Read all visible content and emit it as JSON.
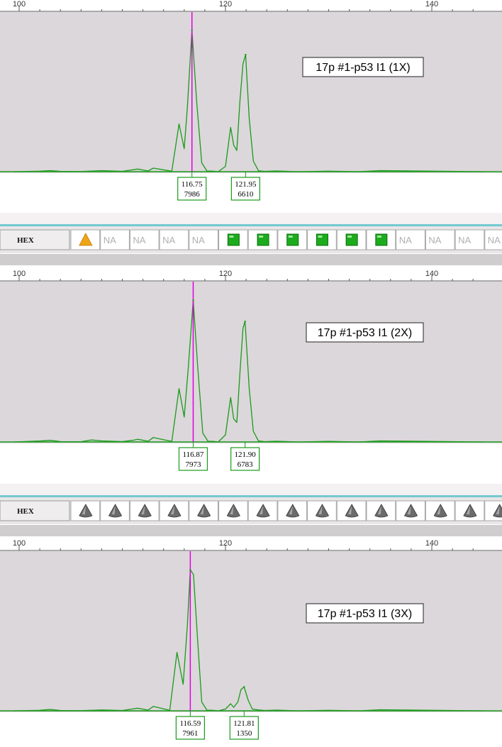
{
  "colors": {
    "plot_background": "#dcd7db",
    "trace": "#1a9a1a",
    "marker": "#e000e0",
    "peak_box": "#1a9a1a",
    "bin_bar_accent": "#74c8d2",
    "bin_pass": "#1cab1c",
    "bin_warn": "#f0a418",
    "bin_none": "#6b6b6b"
  },
  "bin_bars": [
    {
      "dye": "HEX",
      "bins": [
        {
          "status": "warn",
          "text": ""
        },
        {
          "status": "na",
          "text": "NA"
        },
        {
          "status": "na",
          "text": "NA"
        },
        {
          "status": "na",
          "text": "NA"
        },
        {
          "status": "na",
          "text": "NA"
        },
        {
          "status": "pass",
          "text": ""
        },
        {
          "status": "pass",
          "text": ""
        },
        {
          "status": "pass",
          "text": ""
        },
        {
          "status": "pass",
          "text": ""
        },
        {
          "status": "pass",
          "text": ""
        },
        {
          "status": "pass",
          "text": ""
        },
        {
          "status": "na",
          "text": "NA"
        },
        {
          "status": "na",
          "text": "NA"
        },
        {
          "status": "na",
          "text": "NA"
        },
        {
          "status": "na",
          "text": "NA"
        }
      ]
    },
    {
      "dye": "HEX",
      "bins": [
        {
          "status": "none",
          "text": ""
        },
        {
          "status": "none",
          "text": ""
        },
        {
          "status": "none",
          "text": ""
        },
        {
          "status": "none",
          "text": ""
        },
        {
          "status": "none",
          "text": ""
        },
        {
          "status": "none",
          "text": ""
        },
        {
          "status": "none",
          "text": ""
        },
        {
          "status": "none",
          "text": ""
        },
        {
          "status": "none",
          "text": ""
        },
        {
          "status": "none",
          "text": ""
        },
        {
          "status": "none",
          "text": ""
        },
        {
          "status": "none",
          "text": ""
        },
        {
          "status": "none",
          "text": ""
        },
        {
          "status": "none",
          "text": ""
        },
        {
          "status": "none",
          "text": ""
        }
      ]
    }
  ],
  "chart_data": [
    {
      "type": "line",
      "sample_label": "17p #1-p53 I1 (1X)",
      "xlim": [
        99.5,
        145
      ],
      "x_ticks": [
        100,
        120,
        140
      ],
      "ylim": [
        0,
        8700
      ],
      "series": [
        {
          "x": [
            99.5,
            102,
            103,
            104,
            106,
            108,
            110,
            111.5,
            112.5,
            113,
            114.8,
            115.5,
            116,
            116.3,
            116.75,
            117.2,
            117.7,
            118.2,
            118.8,
            119.3,
            120,
            120.5,
            120.8,
            121.1,
            121.4,
            121.7,
            121.95,
            122.3,
            122.7,
            123.2,
            123.8,
            125,
            127,
            130,
            133,
            135,
            145
          ],
          "y": [
            0,
            30,
            60,
            20,
            10,
            60,
            20,
            150,
            40,
            200,
            30,
            2700,
            1300,
            3600,
            7986,
            4000,
            500,
            40,
            30,
            0,
            300,
            2500,
            1500,
            1200,
            4000,
            6100,
            6610,
            3000,
            600,
            50,
            20,
            40,
            0,
            30,
            0,
            60,
            0
          ]
        }
      ],
      "peaks": [
        {
          "x": 116.75,
          "height": 7986,
          "label_size": "116.75",
          "label_height": "7986"
        },
        {
          "x": 121.95,
          "height": 6610,
          "label_size": "121.95",
          "label_height": "6610"
        }
      ],
      "marker_x": 116.75
    },
    {
      "type": "line",
      "sample_label": "17p #1-p53 I1 (2X)",
      "xlim": [
        99.5,
        145
      ],
      "x_ticks": [
        100,
        120,
        140
      ],
      "ylim": [
        0,
        8700
      ],
      "series": [
        {
          "x": [
            99.5,
            102,
            103,
            104,
            106,
            107,
            108,
            110,
            111,
            111.5,
            112.5,
            113,
            114.8,
            115.5,
            116,
            116.4,
            116.87,
            117.3,
            117.8,
            118.3,
            118.8,
            119.3,
            120,
            120.5,
            120.8,
            121.1,
            121.4,
            121.7,
            121.9,
            122.3,
            122.7,
            123.2,
            123.8,
            125,
            127,
            130,
            133,
            135,
            145
          ],
          "y": [
            0,
            50,
            90,
            20,
            10,
            110,
            60,
            20,
            90,
            150,
            40,
            250,
            30,
            3000,
            1400,
            4200,
            7973,
            4300,
            500,
            40,
            30,
            0,
            400,
            2500,
            1300,
            1100,
            3900,
            6400,
            6783,
            3000,
            600,
            50,
            20,
            40,
            0,
            30,
            0,
            60,
            0
          ]
        }
      ],
      "peaks": [
        {
          "x": 116.87,
          "height": 7973,
          "label_size": "116.87",
          "label_height": "7973"
        },
        {
          "x": 121.9,
          "height": 6783,
          "label_size": "121.90",
          "label_height": "6783"
        }
      ],
      "marker_x": 116.87
    },
    {
      "type": "line",
      "sample_label": "17p #1-p53 I1 (3X)",
      "xlim": [
        99.5,
        145
      ],
      "x_ticks": [
        100,
        120,
        140
      ],
      "ylim": [
        0,
        8700
      ],
      "series": [
        {
          "x": [
            99.5,
            102,
            103,
            104,
            106,
            108,
            110,
            111.5,
            112.5,
            113,
            114.6,
            115.3,
            115.9,
            116.3,
            116.59,
            116.9,
            117.3,
            117.7,
            118.2,
            118.8,
            119.3,
            120,
            120.5,
            120.8,
            121.2,
            121.5,
            121.81,
            122.2,
            122.6,
            123.2,
            123.8,
            125,
            127,
            130,
            133,
            135,
            145
          ],
          "y": [
            0,
            30,
            80,
            20,
            10,
            50,
            20,
            150,
            40,
            250,
            30,
            3300,
            1500,
            4800,
            7961,
            7700,
            4000,
            500,
            40,
            30,
            0,
            100,
            400,
            200,
            500,
            1200,
            1350,
            600,
            100,
            50,
            20,
            40,
            0,
            30,
            0,
            60,
            0
          ]
        }
      ],
      "peaks": [
        {
          "x": 116.59,
          "height": 7961,
          "label_size": "116.59",
          "label_height": "7961"
        },
        {
          "x": 121.81,
          "height": 1350,
          "label_size": "121.81",
          "label_height": "1350"
        }
      ],
      "marker_x": 116.59
    }
  ]
}
